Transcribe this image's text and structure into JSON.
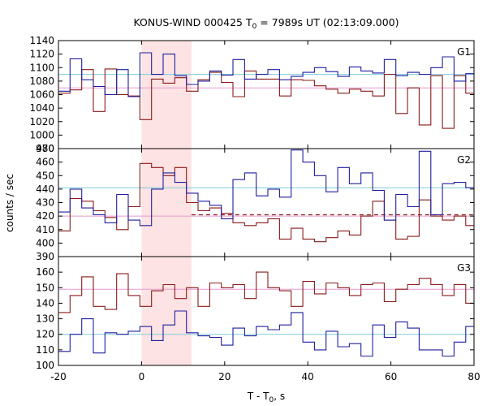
{
  "chart_data": {
    "type": "line",
    "title": "KONUS-WIND 000425 T",
    "title_sub": "0",
    "title_rest": " = 7989s UT (02:13:09.000)",
    "xlabel": "T - T",
    "xlabel_sub": "0",
    "xlabel_rest": ", s",
    "ylabel": "counts / sec",
    "xlim": [
      -20,
      80
    ],
    "xticks": [
      -20,
      0,
      20,
      40,
      60,
      80
    ],
    "shade_x": [
      0,
      12
    ],
    "colors": {
      "blue": "#1f1fa0",
      "red": "#8b1a1a",
      "cyan": "#7ecbdc",
      "pink": "#e89ad0",
      "shade": "#fde3e3"
    },
    "panels": [
      {
        "label": "G1",
        "ylim": [
          980,
          1140
        ],
        "yticks": [
          980,
          1000,
          1020,
          1040,
          1060,
          1080,
          1100,
          1120,
          1140
        ],
        "bkg_blue": 1090,
        "bkg_red": 1070,
        "blue": {
          "x": [
            -20,
            -17.2,
            -14.4,
            -11.6,
            -8.8,
            -6,
            -3.2,
            -0.4,
            2.4,
            5.2,
            8,
            10.8,
            13.6,
            16.4,
            19.2,
            22,
            24.8,
            27.6,
            30.4,
            33.2,
            36,
            38.8,
            41.6,
            44.4,
            47.2,
            50,
            52.8,
            55.6,
            58.4,
            61.2,
            64,
            66.8,
            69.6,
            72.4,
            75.2,
            78
          ],
          "y": [
            1065,
            1113,
            1082,
            1072,
            1060,
            1097,
            1057,
            1122,
            1090,
            1120,
            1088,
            1075,
            1080,
            1095,
            1089,
            1112,
            1083,
            1090,
            1097,
            1082,
            1087,
            1093,
            1100,
            1094,
            1087,
            1101,
            1095,
            1092,
            1112,
            1088,
            1093,
            1090,
            1100,
            1116,
            1080,
            1091
          ]
        },
        "red": {
          "x": [
            -20,
            -17.2,
            -14.4,
            -11.6,
            -8.8,
            -6,
            -3.2,
            -0.4,
            2.4,
            5.2,
            8,
            10.8,
            13.6,
            16.4,
            19.2,
            22,
            24.8,
            27.6,
            30.4,
            33.2,
            36,
            38.8,
            41.6,
            44.4,
            47.2,
            50,
            52.8,
            55.6,
            58.4,
            61.2,
            64,
            66.8,
            69.6,
            72.4,
            75.2,
            78
          ],
          "y": [
            1062,
            1067,
            1097,
            1035,
            1098,
            1060,
            1058,
            1023,
            1083,
            1077,
            1085,
            1065,
            1082,
            1093,
            1078,
            1057,
            1095,
            1083,
            1083,
            1058,
            1082,
            1081,
            1073,
            1068,
            1062,
            1068,
            1065,
            1058,
            1090,
            1032,
            1070,
            1015,
            1088,
            1010,
            1088,
            1062
          ]
        }
      },
      {
        "label": "G2",
        "ylim": [
          390,
          470
        ],
        "yticks": [
          390,
          400,
          410,
          420,
          430,
          440,
          450,
          460,
          470
        ],
        "bkg_blue": 441,
        "bkg_red": 420,
        "fit_red": 421,
        "fit_x": [
          12,
          80
        ],
        "blue": {
          "x": [
            -20,
            -17.2,
            -14.4,
            -11.6,
            -8.8,
            -6,
            -3.2,
            -0.4,
            2.4,
            5.2,
            8,
            10.8,
            13.6,
            16.4,
            19.2,
            22,
            24.8,
            27.6,
            30.4,
            33.2,
            36,
            38.8,
            41.6,
            44.4,
            47.2,
            50,
            52.8,
            55.6,
            58.4,
            61.2,
            64,
            66.8,
            69.6,
            72.4,
            75.2,
            78
          ],
          "y": [
            423,
            440,
            426,
            421,
            415,
            436,
            417,
            413,
            440,
            452,
            445,
            437,
            431,
            428,
            418,
            447,
            452,
            435,
            440,
            434,
            469,
            460,
            450,
            438,
            456,
            444,
            452,
            439,
            417,
            436,
            427,
            468,
            421,
            444,
            445,
            441
          ]
        },
        "red": {
          "x": [
            -20,
            -17.2,
            -14.4,
            -11.6,
            -8.8,
            -6,
            -3.2,
            -0.4,
            2.4,
            5.2,
            8,
            10.8,
            13.6,
            16.4,
            19.2,
            22,
            24.8,
            27.6,
            30.4,
            33.2,
            36,
            38.8,
            41.6,
            44.4,
            47.2,
            50,
            52.8,
            55.6,
            58.4,
            61.2,
            64,
            66.8,
            69.6,
            72.4,
            75.2,
            78
          ],
          "y": [
            409,
            433,
            431,
            424,
            419,
            410,
            427,
            459,
            456,
            450,
            456,
            430,
            424,
            426,
            422,
            415,
            413,
            415,
            418,
            403,
            411,
            403,
            401,
            404,
            409,
            406,
            420,
            431,
            417,
            403,
            405,
            432,
            420,
            417,
            420,
            413
          ]
        }
      },
      {
        "label": "G3",
        "ylim": [
          100,
          170
        ],
        "yticks": [
          100,
          110,
          120,
          130,
          140,
          150,
          160
        ],
        "bkg_blue": 120,
        "bkg_red": 149,
        "blue": {
          "x": [
            -20,
            -17.2,
            -14.4,
            -11.6,
            -8.8,
            -6,
            -3.2,
            -0.4,
            2.4,
            5.2,
            8,
            10.8,
            13.6,
            16.4,
            19.2,
            22,
            24.8,
            27.6,
            30.4,
            33.2,
            36,
            38.8,
            41.6,
            44.4,
            47.2,
            50,
            52.8,
            55.6,
            58.4,
            61.2,
            64,
            66.8,
            69.6,
            72.4,
            75.2,
            78
          ],
          "y": [
            109,
            120,
            130,
            108,
            121,
            120,
            122,
            125,
            116,
            126,
            135,
            121,
            119,
            118,
            113,
            124,
            119,
            125,
            123,
            126,
            134,
            115,
            110,
            122,
            112,
            114,
            106,
            126,
            118,
            128,
            124,
            110,
            110,
            106,
            115,
            125
          ]
        },
        "red": {
          "x": [
            -20,
            -17.2,
            -14.4,
            -11.6,
            -8.8,
            -6,
            -3.2,
            -0.4,
            2.4,
            5.2,
            8,
            10.8,
            13.6,
            16.4,
            19.2,
            22,
            24.8,
            27.6,
            30.4,
            33.2,
            36,
            38.8,
            41.6,
            44.4,
            47.2,
            50,
            52.8,
            55.6,
            58.4,
            61.2,
            64,
            66.8,
            69.6,
            72.4,
            75.2,
            78
          ],
          "y": [
            134,
            145,
            157,
            138,
            136,
            159,
            145,
            138,
            148,
            152,
            143,
            150,
            138,
            153,
            150,
            152,
            143,
            160,
            150,
            148,
            138,
            154,
            146,
            153,
            150,
            145,
            152,
            153,
            141,
            149,
            152,
            156,
            152,
            145,
            152,
            140
          ]
        }
      }
    ]
  }
}
